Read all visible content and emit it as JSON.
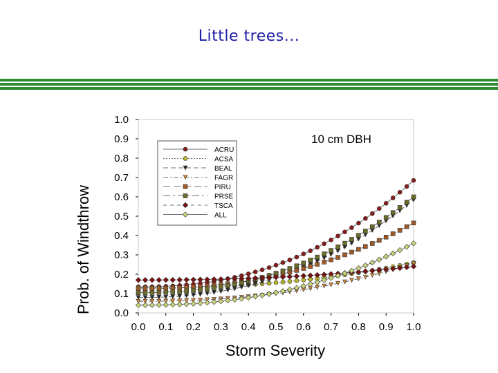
{
  "slide": {
    "title": "Little trees..."
  },
  "chart_data": {
    "type": "line",
    "title": "",
    "annotation": "10 cm DBH",
    "xlabel": "Storm Severity",
    "ylabel": "Prob. of Windthrow",
    "xlim": [
      0.0,
      1.0
    ],
    "ylim": [
      0.0,
      1.0
    ],
    "xticks": [
      "0.0",
      "0.1",
      "0.2",
      "0.3",
      "0.4",
      "0.5",
      "0.6",
      "0.7",
      "0.8",
      "0.9",
      "1.0"
    ],
    "yticks": [
      "0.0",
      "0.1",
      "0.2",
      "0.3",
      "0.4",
      "0.5",
      "0.6",
      "0.7",
      "0.8",
      "0.9",
      "1.0"
    ],
    "grid": false,
    "legend_position": "top-left",
    "series": [
      {
        "name": "ACRU",
        "color": "#8b1a1a",
        "marker": "circle",
        "dash": "",
        "start": 0.135,
        "end": 0.685
      },
      {
        "name": "ACSA",
        "color": "#b5b52a",
        "marker": "circle",
        "dash": "2,2",
        "start": 0.13,
        "end": 0.26
      },
      {
        "name": "BEAL",
        "color": "#2b2b2b",
        "marker": "triangle-down",
        "dash": "7,4",
        "start": 0.08,
        "end": 0.585
      },
      {
        "name": "FAGR",
        "color": "#d08a3a",
        "marker": "triangle-down",
        "dash": "7,3,2,3",
        "start": 0.06,
        "end": 0.255
      },
      {
        "name": "PIRU",
        "color": "#a05a28",
        "marker": "square",
        "dash": "10,5",
        "start": 0.125,
        "end": 0.465
      },
      {
        "name": "PRSE",
        "color": "#6b6b2a",
        "marker": "square",
        "dash": "10,4,3,4",
        "start": 0.105,
        "end": 0.6
      },
      {
        "name": "TSCA",
        "color": "#7a1010",
        "marker": "diamond",
        "dash": "5,5",
        "start": 0.17,
        "end": 0.24
      },
      {
        "name": "ALL",
        "color": "#c8d27a",
        "marker": "diamond",
        "dash": "",
        "start": 0.04,
        "end": 0.36
      }
    ]
  }
}
